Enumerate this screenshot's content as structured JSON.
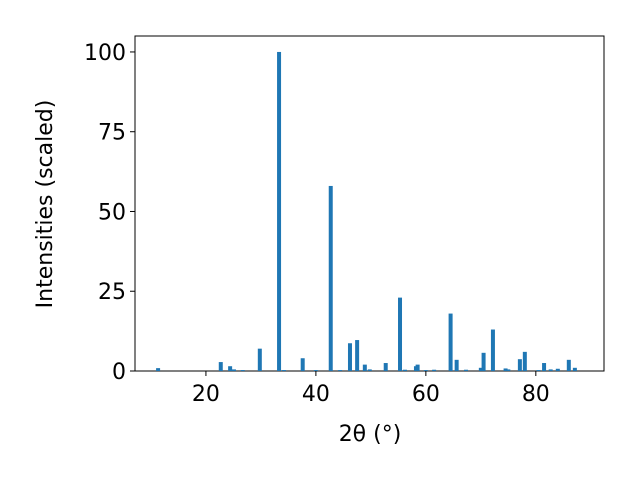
{
  "chart_data": {
    "type": "bar",
    "xlabel": "2θ (°)",
    "ylabel": "Intensities (scaled)",
    "x": [
      11.3,
      22.7,
      24.4,
      25.1,
      26.7,
      29.8,
      33.3,
      34.2,
      37.6,
      40.0,
      42.7,
      44.4,
      46.2,
      47.5,
      48.9,
      49.8,
      52.7,
      55.3,
      56.2,
      58.2,
      58.5,
      60.0,
      61.5,
      64.5,
      65.6,
      67.3,
      70.0,
      70.5,
      72.2,
      74.5,
      75.0,
      77.1,
      78.0,
      80.5,
      81.5,
      82.7,
      84.0,
      86.0,
      87.1
    ],
    "values": [
      0.9,
      2.8,
      1.5,
      0.5,
      0.3,
      7,
      100,
      0.3,
      4,
      0.3,
      58,
      0.3,
      8.7,
      9.7,
      2,
      0.5,
      2.5,
      23,
      0.4,
      1.5,
      2,
      0.3,
      0.4,
      18,
      3.5,
      0.4,
      1,
      5.7,
      13,
      0.8,
      0.5,
      3.7,
      6,
      0.3,
      2.5,
      0.5,
      0.7,
      3.5,
      1
    ],
    "color": "#1f77b4",
    "xlim": [
      7.1,
      92.4
    ],
    "xticks": [
      20,
      40,
      60,
      80
    ],
    "ylim": [
      0,
      105
    ],
    "yticks": [
      0,
      25,
      50,
      75,
      100
    ]
  }
}
